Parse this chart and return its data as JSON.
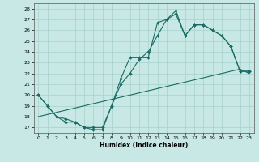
{
  "xlabel": "Humidex (Indice chaleur)",
  "bg_color": "#c8e8e5",
  "line_color": "#1a6b65",
  "grid_color": "#a8d0cc",
  "xlim": [
    -0.5,
    23.5
  ],
  "ylim": [
    16.5,
    28.5
  ],
  "xticks": [
    0,
    1,
    2,
    3,
    4,
    5,
    6,
    7,
    8,
    9,
    10,
    11,
    12,
    13,
    14,
    15,
    16,
    17,
    18,
    19,
    20,
    21,
    22,
    23
  ],
  "yticks": [
    17,
    18,
    19,
    20,
    21,
    22,
    23,
    24,
    25,
    26,
    27,
    28
  ],
  "curve1_x": [
    0,
    1,
    2,
    3,
    4,
    5,
    6,
    7,
    8,
    9,
    10,
    11,
    12,
    13,
    14,
    15,
    16,
    17,
    18,
    19,
    20,
    21,
    22,
    23
  ],
  "curve1_y": [
    20.0,
    19.0,
    18.0,
    17.5,
    17.5,
    17.0,
    16.8,
    16.8,
    19.0,
    21.5,
    23.5,
    23.5,
    23.5,
    26.7,
    27.0,
    27.8,
    25.5,
    26.5,
    26.5,
    26.0,
    25.5,
    24.5,
    22.2,
    22.2
  ],
  "curve2_x": [
    0,
    1,
    2,
    3,
    4,
    5,
    6,
    7,
    8,
    9,
    10,
    11,
    12,
    13,
    14,
    15,
    16,
    17,
    18,
    19,
    20,
    21,
    22,
    23
  ],
  "curve2_y": [
    20.0,
    19.0,
    18.0,
    17.8,
    17.5,
    17.0,
    17.0,
    17.0,
    19.0,
    21.0,
    22.0,
    23.3,
    24.0,
    25.5,
    27.0,
    27.5,
    25.5,
    26.5,
    26.5,
    26.0,
    25.5,
    24.5,
    22.2,
    22.2
  ],
  "curve3_x": [
    0,
    1,
    2,
    3,
    4,
    5,
    6,
    7,
    8,
    9,
    10,
    11,
    12,
    13,
    14,
    15,
    16,
    17,
    18,
    19,
    20,
    21,
    22,
    23
  ],
  "curve3_y": [
    18.0,
    18.2,
    18.4,
    18.6,
    18.8,
    19.0,
    19.2,
    19.4,
    19.6,
    19.8,
    20.0,
    20.2,
    20.4,
    20.6,
    20.8,
    21.0,
    21.2,
    21.4,
    21.6,
    21.8,
    22.0,
    22.2,
    22.4,
    22.0
  ]
}
